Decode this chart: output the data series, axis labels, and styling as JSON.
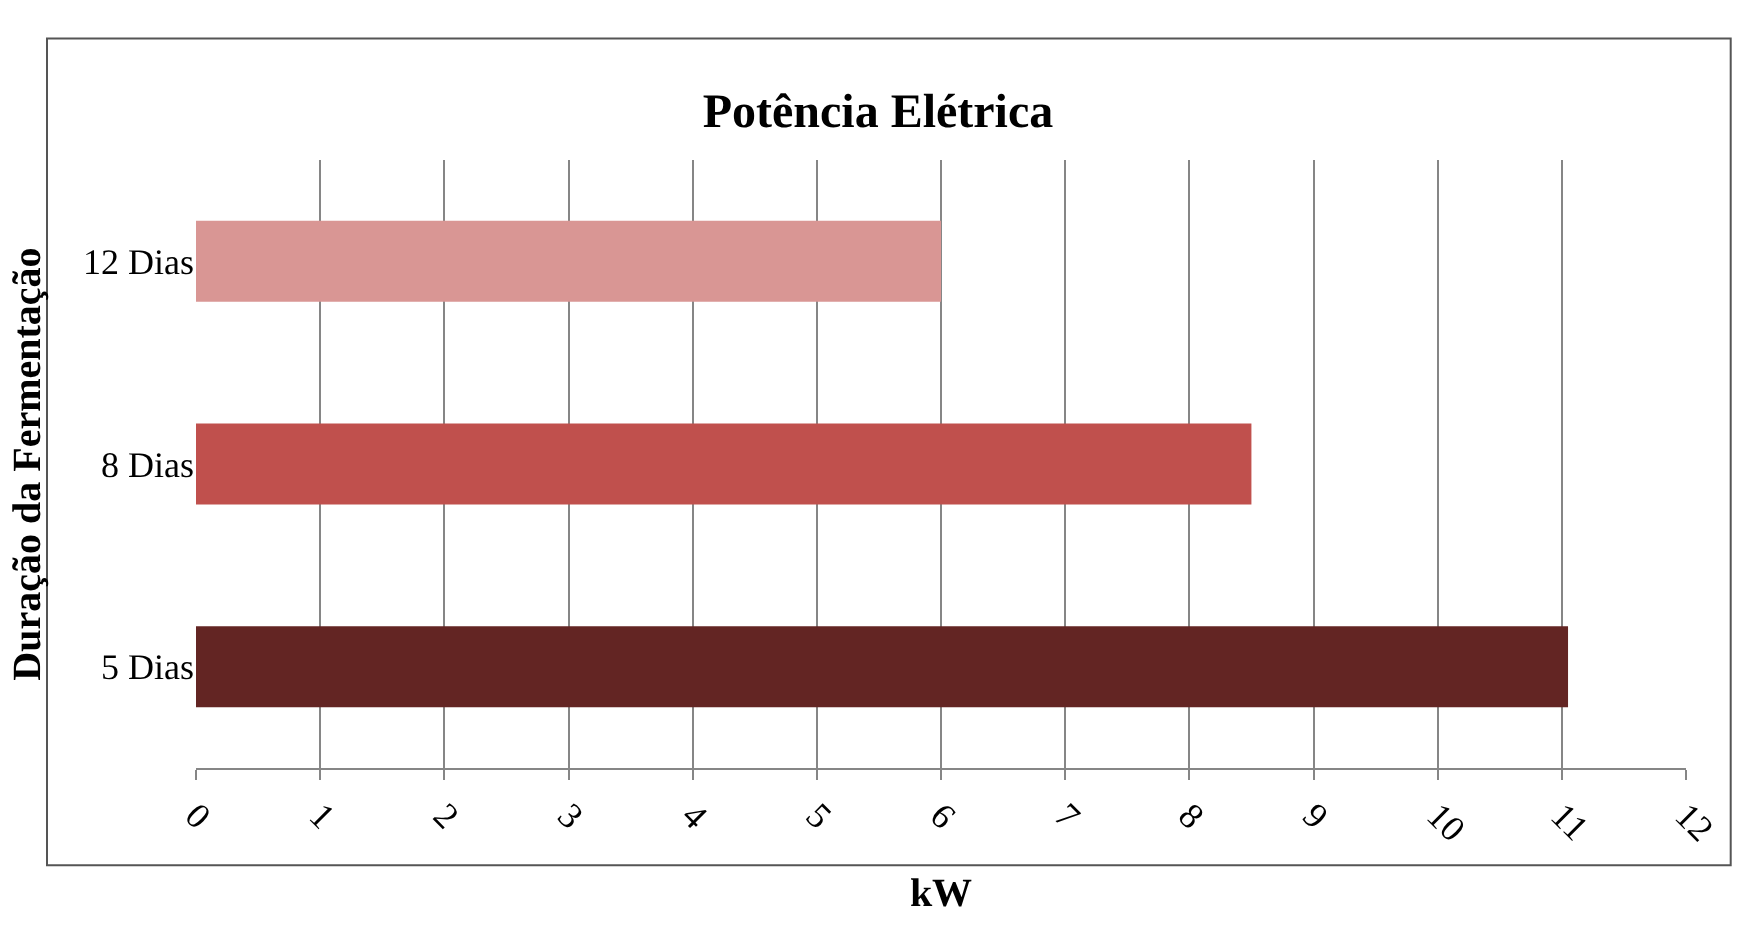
{
  "chart_data": {
    "type": "bar",
    "orientation": "horizontal",
    "title": "Potência Elétrica",
    "xlabel": "kW",
    "ylabel": "Duração da Fermentação",
    "categories": [
      "12 Dias",
      "8 Dias",
      "5 Dias"
    ],
    "values": [
      6,
      8.5,
      11.05
    ],
    "colors": [
      "#d99694",
      "#c0504d",
      "#632523"
    ],
    "xlim": [
      0,
      12
    ],
    "xticks": [
      0,
      1,
      2,
      3,
      4,
      5,
      6,
      7,
      8,
      9,
      10,
      11,
      12
    ],
    "grid": "x",
    "legend": false
  }
}
